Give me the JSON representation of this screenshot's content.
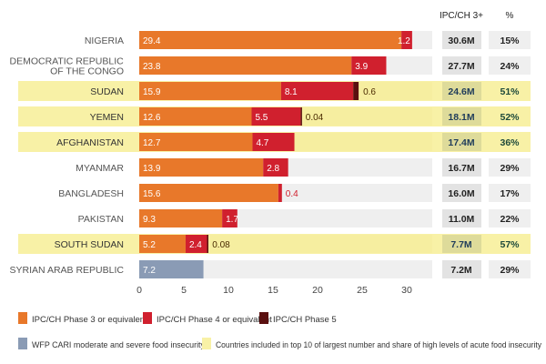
{
  "chart_data": {
    "type": "bar",
    "stacked": true,
    "orientation": "horizontal",
    "xlim": [
      0,
      33
    ],
    "xticks": [
      0,
      5,
      10,
      15,
      20,
      25,
      30
    ],
    "column_headers": {
      "count": "IPC/CH 3+",
      "share": "%"
    },
    "colors": {
      "phase3": "#e8782a",
      "phase4": "#d0202e",
      "phase5": "#5a1010",
      "cari": "#8a9bb5",
      "highlight": "#f8f1a6",
      "track": "#efefef",
      "cellbox": "#e3e3e3"
    },
    "categories": [
      "NIGERIA",
      "DEMOCRATIC REPUBLIC OF THE CONGO",
      "SUDAN",
      "YEMEN",
      "AFGHANISTAN",
      "MYANMAR",
      "BANGLADESH",
      "PAKISTAN",
      "SOUTH SUDAN",
      "SYRIAN ARAB REPUBLIC"
    ],
    "rows": [
      {
        "country": "NIGERIA",
        "phase3": 29.4,
        "phase4": 1.2,
        "phase5": null,
        "cari": null,
        "count": "30.6M",
        "share": "15%",
        "highlight": false
      },
      {
        "country": "DEMOCRATIC REPUBLIC|OF THE CONGO",
        "phase3": 23.8,
        "phase4": 3.9,
        "phase5": null,
        "cari": null,
        "count": "27.7M",
        "share": "24%",
        "highlight": false
      },
      {
        "country": "SUDAN",
        "phase3": 15.9,
        "phase4": 8.1,
        "phase5": 0.6,
        "cari": null,
        "count": "24.6M",
        "share": "51%",
        "highlight": true
      },
      {
        "country": "YEMEN",
        "phase3": 12.6,
        "phase4": 5.5,
        "phase5": 0.04,
        "cari": null,
        "count": "18.1M",
        "share": "52%",
        "highlight": true
      },
      {
        "country": "AFGHANISTAN",
        "phase3": 12.7,
        "phase4": 4.7,
        "phase5": null,
        "cari": null,
        "count": "17.4M",
        "share": "36%",
        "highlight": true
      },
      {
        "country": "MYANMAR",
        "phase3": 13.9,
        "phase4": 2.8,
        "phase5": null,
        "cari": null,
        "count": "16.7M",
        "share": "29%",
        "highlight": false
      },
      {
        "country": "BANGLADESH",
        "phase3": 15.6,
        "phase4": 0.4,
        "phase5": null,
        "cari": null,
        "count": "16.0M",
        "share": "17%",
        "highlight": false
      },
      {
        "country": "PAKISTAN",
        "phase3": 9.3,
        "phase4": 1.7,
        "phase5": null,
        "cari": null,
        "count": "11.0M",
        "share": "22%",
        "highlight": false
      },
      {
        "country": "SOUTH SUDAN",
        "phase3": 5.2,
        "phase4": 2.4,
        "phase5": 0.08,
        "cari": null,
        "count": "7.7M",
        "share": "57%",
        "highlight": true
      },
      {
        "country": "SYRIAN ARAB REPUBLIC",
        "phase3": null,
        "phase4": null,
        "phase5": null,
        "cari": 7.2,
        "count": "7.2M",
        "share": "29%",
        "highlight": false
      }
    ],
    "legend": [
      {
        "key": "phase3",
        "label": "IPC/CH Phase 3 or equivalent"
      },
      {
        "key": "phase4",
        "label": "IPC/CH Phase 4 or equivalent"
      },
      {
        "key": "phase5",
        "label": "IPC/CH Phase 5"
      },
      {
        "key": "cari",
        "label": "WFP CARI moderate and severe food insecurity"
      },
      {
        "key": "highlight",
        "label": "Countries included in top 10 of largest number and share of high levels of acute food insecurity"
      }
    ],
    "legend_placement": "bottom"
  }
}
